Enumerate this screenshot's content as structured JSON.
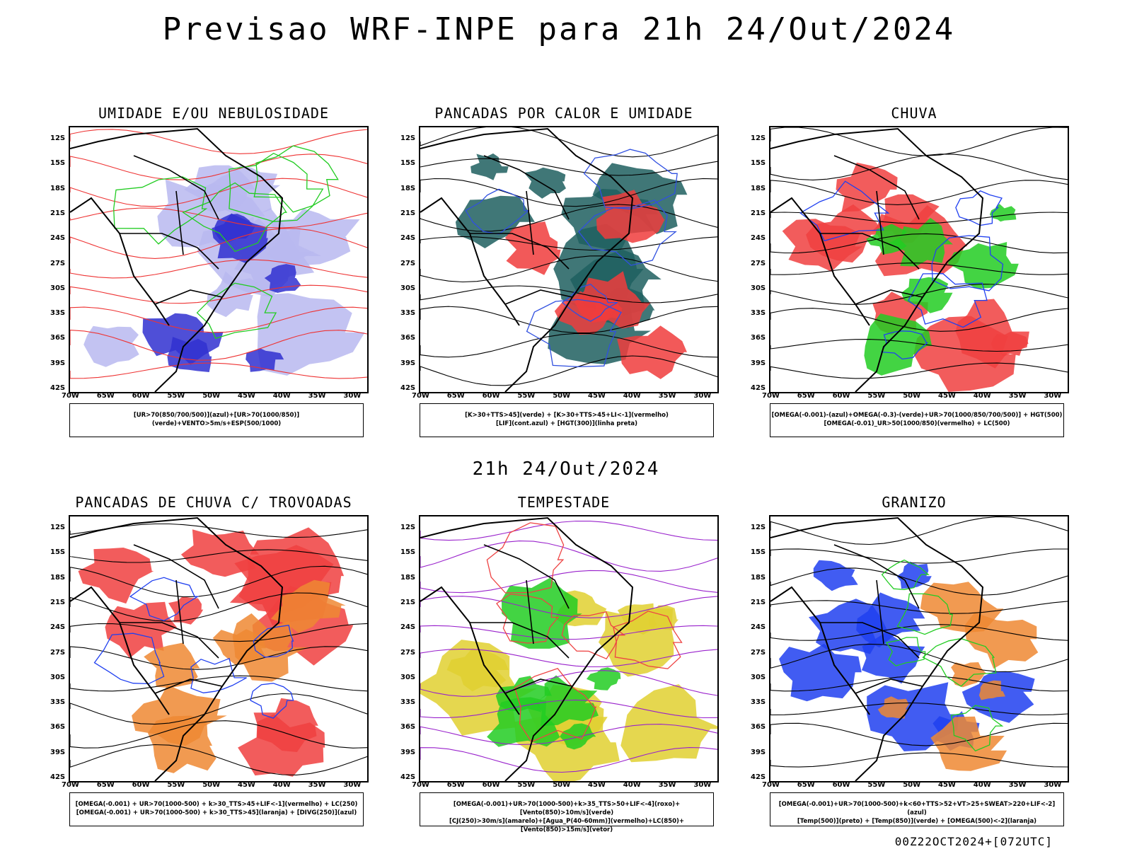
{
  "title": "Previsao WRF-INPE  para 21h 24/Out/2024",
  "mid_title": "21h 24/Out/2024",
  "footer": "00Z22OCT2024+[072UTC]",
  "lat_labels": [
    "12S",
    "15S",
    "18S",
    "21S",
    "24S",
    "27S",
    "30S",
    "33S",
    "36S",
    "39S",
    "42S"
  ],
  "lon_labels": [
    "70W",
    "65W",
    "60W",
    "55W",
    "50W",
    "45W",
    "40W",
    "35W",
    "30W"
  ],
  "panels": [
    {
      "title": "UMIDADE E/OU NEBULOSIDADE",
      "legend": [
        "[UR>70(850/700/500)](azul)+[UR>70(1000/850)](verde)+VENTO>5m/s+ESP(500/1000)"
      ],
      "colors": {
        "fill_a": "#b8b8f0",
        "fill_b": "#3030d0",
        "contour_a": "#22cc22",
        "contour_b": "#ee3333"
      }
    },
    {
      "title": "PANCADAS POR CALOR E UMIDADE",
      "legend": [
        "[K>30+TTS>45](verde)  +  [K>30+TTS>45+LI<-1](vermelho)",
        "[LIF](cont.azul)  +  [HGT(300)](linha preta)"
      ],
      "colors": {
        "fill_a": "#1f5f5f",
        "fill_b": "#f03c3c",
        "contour_a": "#3050e0",
        "contour_b": "#000000"
      }
    },
    {
      "title": "CHUVA",
      "legend": [
        "[OMEGA(-0.001)-(azul)+OMEGA(-0.3)-(verde)+UR>70(1000/850/700/500)]  +  HGT(500)",
        "[OMEGA(-0.01)_UR>50(1000/850)(vermelho)  +  LC(500)"
      ],
      "colors": {
        "fill_a": "#f04040",
        "fill_b": "#22cc22",
        "contour_a": "#2040f0",
        "contour_b": "#000000"
      }
    },
    {
      "title": "PANCADAS DE CHUVA C/ TROVOADAS",
      "legend": [
        "[OMEGA(-0.001)  +  UR>70(1000-500)  +  k>30_TTS>45+LIF<-1](vermelho)  +  LC(250)",
        "[OMEGA(-0.001)  +  UR>70(1000-500)  +  k>30_TTS>45](laranja)  +  [DIVG(250)](azul)"
      ],
      "colors": {
        "fill_a": "#f04040",
        "fill_b": "#ee8833",
        "contour_a": "#2040f0",
        "contour_b": "#000000"
      }
    },
    {
      "title": "TEMPESTADE",
      "legend": [
        "[OMEGA(-0.001)+UR>70(1000-500)+k>35_TTS>50+LIF<-4](roxo)+[Vento(850)>10m/s](verde)",
        "[CJ(250)>30m/s](amarelo)+[Agua_P(40-60mm)](vermelho)+LC(850)+[Vento(850)>15m/s](vetor)"
      ],
      "colors": {
        "fill_a": "#e0d030",
        "fill_b": "#22cc22",
        "contour_a": "#ee4444",
        "contour_b": "#9922cc"
      }
    },
    {
      "title": "GRANIZO",
      "legend": [
        "[OMEGA(-0.001)+UR>70(1000-500)+k<60+TTS>52+VT>25+SWEAT>220+LIF<-2](azul)",
        "[Temp(500)](preto)  +  [Temp(850)](verde)  +  [OMEGA(500)<-2](laranja)"
      ],
      "colors": {
        "fill_a": "#2040f0",
        "fill_b": "#ee8833",
        "contour_a": "#22cc22",
        "contour_b": "#000000"
      }
    }
  ]
}
